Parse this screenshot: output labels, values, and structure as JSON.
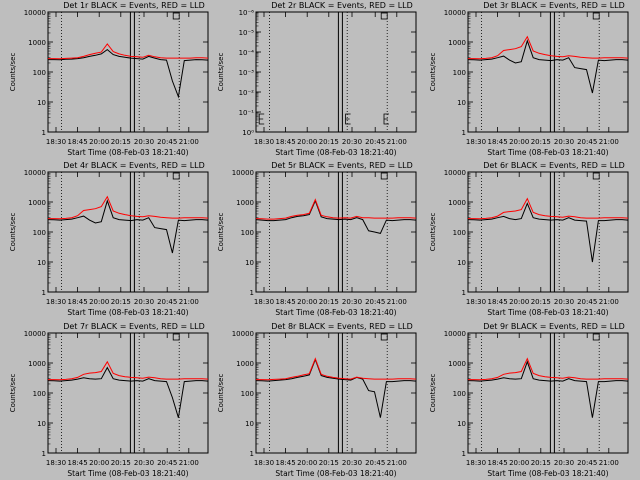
{
  "figure": {
    "background": "#bebebe",
    "event_color": "#000000",
    "lld_color": "#ff0000",
    "xlabel": "Start Time (08-Feb-03 18:21:40)",
    "ylabel": "Counts/sec",
    "x_ticks": [
      "18:30",
      "18:45",
      "20:00",
      "20:15",
      "20:30",
      "20:45",
      "21:00"
    ],
    "y_ticks_std": [
      "1",
      "10",
      "100",
      "1000",
      "10000"
    ],
    "y_ticks_det2": [
      "10⁰",
      "10⁻¹",
      "10⁻²",
      "10⁻³",
      "10⁻⁴",
      "10⁻⁵",
      "10⁻⁶"
    ]
  },
  "chart_data": [
    {
      "type": "line",
      "title": "Det 1r BLACK = Events, RED = LLD",
      "scale": "log",
      "ylim": [
        1,
        10000
      ],
      "x_range": [
        "18:21:40",
        "21:00"
      ],
      "series": [
        {
          "name": "Events",
          "color": "#000000",
          "values": [
            260,
            260,
            255,
            265,
            270,
            280,
            300,
            330,
            360,
            400,
            560,
            380,
            330,
            310,
            290,
            280,
            270,
            330,
            290,
            260,
            250,
            50,
            15,
            240,
            250,
            260,
            255,
            250
          ]
        },
        {
          "name": "LLD",
          "color": "#ff0000",
          "values": [
            280,
            280,
            275,
            285,
            290,
            300,
            330,
            380,
            420,
            460,
            860,
            480,
            400,
            360,
            330,
            320,
            310,
            360,
            320,
            300,
            290,
            290,
            290,
            290,
            290,
            300,
            300,
            290
          ]
        }
      ]
    },
    {
      "type": "line",
      "title": "Det 2r BLACK = Events, RED = LLD",
      "scale": "log",
      "ylim": [
        1e-06,
        1
      ],
      "x_range": [
        "18:21:40",
        "21:00"
      ],
      "series": []
    },
    {
      "type": "line",
      "title": "Det 3r BLACK = Events, RED = LLD",
      "scale": "log",
      "ylim": [
        1,
        10000
      ],
      "x_range": [
        "18:21:40",
        "21:00"
      ],
      "series": [
        {
          "name": "Events",
          "color": "#000000",
          "values": [
            260,
            255,
            250,
            260,
            270,
            300,
            340,
            250,
            200,
            220,
            1100,
            300,
            260,
            250,
            240,
            260,
            250,
            300,
            140,
            130,
            120,
            20,
            250,
            240,
            250,
            260,
            260,
            250
          ]
        },
        {
          "name": "LLD",
          "color": "#ff0000",
          "values": [
            280,
            280,
            275,
            285,
            300,
            350,
            520,
            560,
            600,
            700,
            1500,
            500,
            420,
            380,
            350,
            330,
            320,
            350,
            330,
            310,
            300,
            290,
            290,
            300,
            300,
            300,
            300,
            290
          ]
        }
      ]
    },
    {
      "type": "line",
      "title": "Det 4r BLACK = Events, RED = LLD",
      "scale": "log",
      "ylim": [
        1,
        10000
      ],
      "x_range": [
        "18:21:40",
        "21:00"
      ],
      "series": [
        {
          "name": "Events",
          "color": "#000000",
          "values": [
            260,
            255,
            250,
            260,
            270,
            300,
            340,
            250,
            200,
            220,
            1100,
            300,
            260,
            250,
            240,
            260,
            250,
            300,
            140,
            130,
            120,
            20,
            250,
            240,
            250,
            260,
            260,
            250
          ]
        },
        {
          "name": "LLD",
          "color": "#ff0000",
          "values": [
            280,
            280,
            275,
            285,
            300,
            350,
            520,
            560,
            600,
            700,
            1500,
            500,
            420,
            380,
            350,
            330,
            320,
            350,
            330,
            310,
            300,
            290,
            290,
            300,
            300,
            300,
            300,
            290
          ]
        }
      ]
    },
    {
      "type": "line",
      "title": "Det 5r BLACK = Events, RED = LLD",
      "scale": "log",
      "ylim": [
        1,
        10000
      ],
      "x_range": [
        "18:21:40",
        "21:00"
      ],
      "series": [
        {
          "name": "Events",
          "color": "#000000",
          "values": [
            260,
            250,
            240,
            240,
            250,
            260,
            300,
            330,
            350,
            380,
            1100,
            320,
            280,
            270,
            260,
            270,
            260,
            300,
            260,
            110,
            100,
            90,
            250,
            240,
            250,
            260,
            260,
            250
          ]
        },
        {
          "name": "LLD",
          "color": "#ff0000",
          "values": [
            280,
            275,
            270,
            270,
            280,
            290,
            330,
            360,
            380,
            420,
            1200,
            360,
            320,
            300,
            290,
            300,
            290,
            330,
            300,
            300,
            290,
            290,
            290,
            290,
            300,
            300,
            300,
            290
          ]
        }
      ]
    },
    {
      "type": "line",
      "title": "Det 6r BLACK = Events, RED = LLD",
      "scale": "log",
      "ylim": [
        1,
        10000
      ],
      "x_range": [
        "18:21:40",
        "21:00"
      ],
      "series": [
        {
          "name": "Events",
          "color": "#000000",
          "values": [
            260,
            255,
            250,
            260,
            270,
            300,
            330,
            280,
            260,
            280,
            900,
            300,
            270,
            260,
            250,
            260,
            250,
            300,
            250,
            240,
            230,
            10,
            240,
            240,
            250,
            260,
            260,
            250
          ]
        },
        {
          "name": "LLD",
          "color": "#ff0000",
          "values": [
            280,
            280,
            275,
            285,
            300,
            340,
            450,
            480,
            500,
            560,
            1300,
            450,
            380,
            350,
            330,
            320,
            310,
            340,
            320,
            300,
            290,
            290,
            290,
            300,
            300,
            300,
            300,
            290
          ]
        }
      ]
    },
    {
      "type": "line",
      "title": "Det 7r BLACK = Events, RED = LLD",
      "scale": "log",
      "ylim": [
        1,
        10000
      ],
      "x_range": [
        "18:21:40",
        "21:00"
      ],
      "series": [
        {
          "name": "Events",
          "color": "#000000",
          "values": [
            260,
            255,
            250,
            260,
            270,
            290,
            320,
            300,
            290,
            300,
            700,
            300,
            270,
            260,
            250,
            260,
            250,
            300,
            260,
            250,
            240,
            70,
            15,
            240,
            250,
            260,
            260,
            250
          ]
        },
        {
          "name": "LLD",
          "color": "#ff0000",
          "values": [
            280,
            280,
            275,
            285,
            300,
            330,
            420,
            460,
            480,
            520,
            1100,
            450,
            380,
            350,
            330,
            320,
            310,
            340,
            320,
            300,
            290,
            290,
            290,
            300,
            300,
            300,
            300,
            290
          ]
        }
      ]
    },
    {
      "type": "line",
      "title": "Det 8r BLACK = Events, RED = LLD",
      "scale": "log",
      "ylim": [
        1,
        10000
      ],
      "x_range": [
        "18:21:40",
        "21:00"
      ],
      "series": [
        {
          "name": "Events",
          "color": "#000000",
          "values": [
            260,
            255,
            250,
            260,
            270,
            280,
            300,
            330,
            360,
            400,
            1300,
            380,
            330,
            310,
            290,
            280,
            270,
            330,
            290,
            120,
            110,
            15,
            240,
            240,
            250,
            260,
            260,
            250
          ]
        },
        {
          "name": "LLD",
          "color": "#ff0000",
          "values": [
            280,
            280,
            275,
            285,
            290,
            300,
            330,
            360,
            400,
            440,
            1400,
            420,
            360,
            330,
            310,
            300,
            290,
            340,
            310,
            300,
            290,
            290,
            290,
            290,
            300,
            300,
            300,
            290
          ]
        }
      ]
    },
    {
      "type": "line",
      "title": "Det 9r BLACK = Events, RED = LLD",
      "scale": "log",
      "ylim": [
        1,
        10000
      ],
      "x_range": [
        "18:21:40",
        "21:00"
      ],
      "series": [
        {
          "name": "Events",
          "color": "#000000",
          "values": [
            260,
            255,
            250,
            260,
            270,
            290,
            320,
            300,
            290,
            300,
            1100,
            300,
            270,
            260,
            250,
            260,
            250,
            300,
            260,
            250,
            240,
            15,
            240,
            240,
            250,
            260,
            260,
            250
          ]
        },
        {
          "name": "LLD",
          "color": "#ff0000",
          "values": [
            280,
            280,
            275,
            285,
            300,
            330,
            420,
            460,
            480,
            520,
            1400,
            450,
            380,
            350,
            330,
            320,
            310,
            340,
            320,
            300,
            290,
            290,
            290,
            300,
            300,
            300,
            300,
            290
          ]
        }
      ]
    }
  ]
}
